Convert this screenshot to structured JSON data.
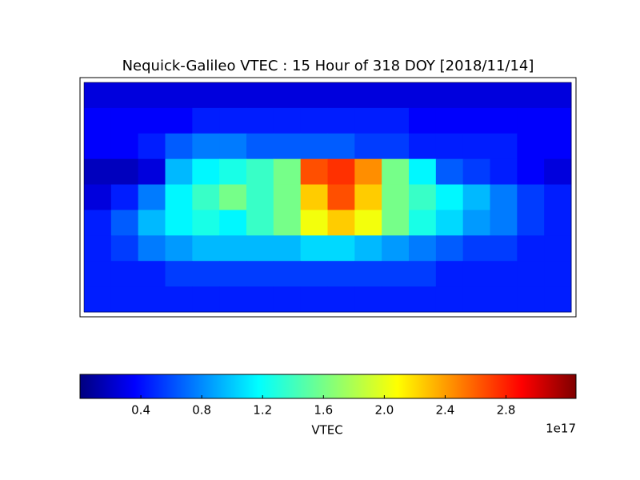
{
  "chart_data": {
    "type": "heatmap",
    "title": "Nequick-Galileo VTEC : 15 Hour of 318 DOY [2018/11/14]",
    "x": [
      -170,
      -150,
      -130,
      -110,
      -90,
      -70,
      -50,
      -30,
      -10,
      10,
      30,
      50,
      70,
      90,
      110,
      130,
      150,
      170
    ],
    "y": [
      80,
      60,
      40,
      20,
      0,
      -20,
      -40,
      -60,
      -80
    ],
    "xlim": [
      -180,
      180
    ],
    "ylim": [
      -90,
      90
    ],
    "values": [
      [
        0.3,
        0.3,
        0.3,
        0.3,
        0.3,
        0.3,
        0.3,
        0.3,
        0.3,
        0.3,
        0.3,
        0.3,
        0.3,
        0.3,
        0.3,
        0.3,
        0.3,
        0.3
      ],
      [
        0.4,
        0.4,
        0.4,
        0.4,
        0.5,
        0.5,
        0.5,
        0.5,
        0.5,
        0.5,
        0.5,
        0.5,
        0.4,
        0.4,
        0.4,
        0.4,
        0.4,
        0.4
      ],
      [
        0.4,
        0.4,
        0.5,
        0.7,
        0.8,
        0.8,
        0.7,
        0.7,
        0.7,
        0.7,
        0.6,
        0.6,
        0.5,
        0.5,
        0.5,
        0.5,
        0.4,
        0.4
      ],
      [
        0.2,
        0.2,
        0.3,
        1.0,
        1.2,
        1.3,
        1.4,
        1.6,
        2.6,
        2.7,
        2.4,
        1.6,
        1.2,
        0.7,
        0.6,
        0.5,
        0.4,
        0.3
      ],
      [
        0.3,
        0.5,
        0.8,
        1.2,
        1.4,
        1.6,
        1.4,
        1.6,
        2.2,
        2.6,
        2.2,
        1.6,
        1.4,
        1.2,
        1.0,
        0.8,
        0.6,
        0.5
      ],
      [
        0.5,
        0.7,
        1.0,
        1.2,
        1.3,
        1.2,
        1.4,
        1.6,
        2.0,
        2.2,
        2.0,
        1.6,
        1.3,
        1.1,
        0.9,
        0.8,
        0.6,
        0.5
      ],
      [
        0.5,
        0.6,
        0.8,
        0.9,
        1.0,
        1.0,
        1.0,
        1.0,
        1.1,
        1.1,
        1.0,
        0.9,
        0.8,
        0.7,
        0.6,
        0.6,
        0.5,
        0.5
      ],
      [
        0.5,
        0.5,
        0.5,
        0.6,
        0.6,
        0.6,
        0.6,
        0.6,
        0.6,
        0.6,
        0.6,
        0.6,
        0.6,
        0.5,
        0.5,
        0.5,
        0.5,
        0.5
      ],
      [
        0.5,
        0.5,
        0.5,
        0.5,
        0.5,
        0.5,
        0.5,
        0.5,
        0.5,
        0.5,
        0.5,
        0.5,
        0.5,
        0.5,
        0.5,
        0.5,
        0.5,
        0.5
      ]
    ],
    "colormap": "jet",
    "clim": [
      0,
      3.26
    ],
    "colorbar_label": "VTEC",
    "colorbar_offset": "1e17",
    "colorbar_ticks": [
      0.4,
      0.8,
      1.2,
      1.6,
      {
        "value": 2,
        "label": "2.0"
      },
      2.4,
      2.8
    ]
  }
}
